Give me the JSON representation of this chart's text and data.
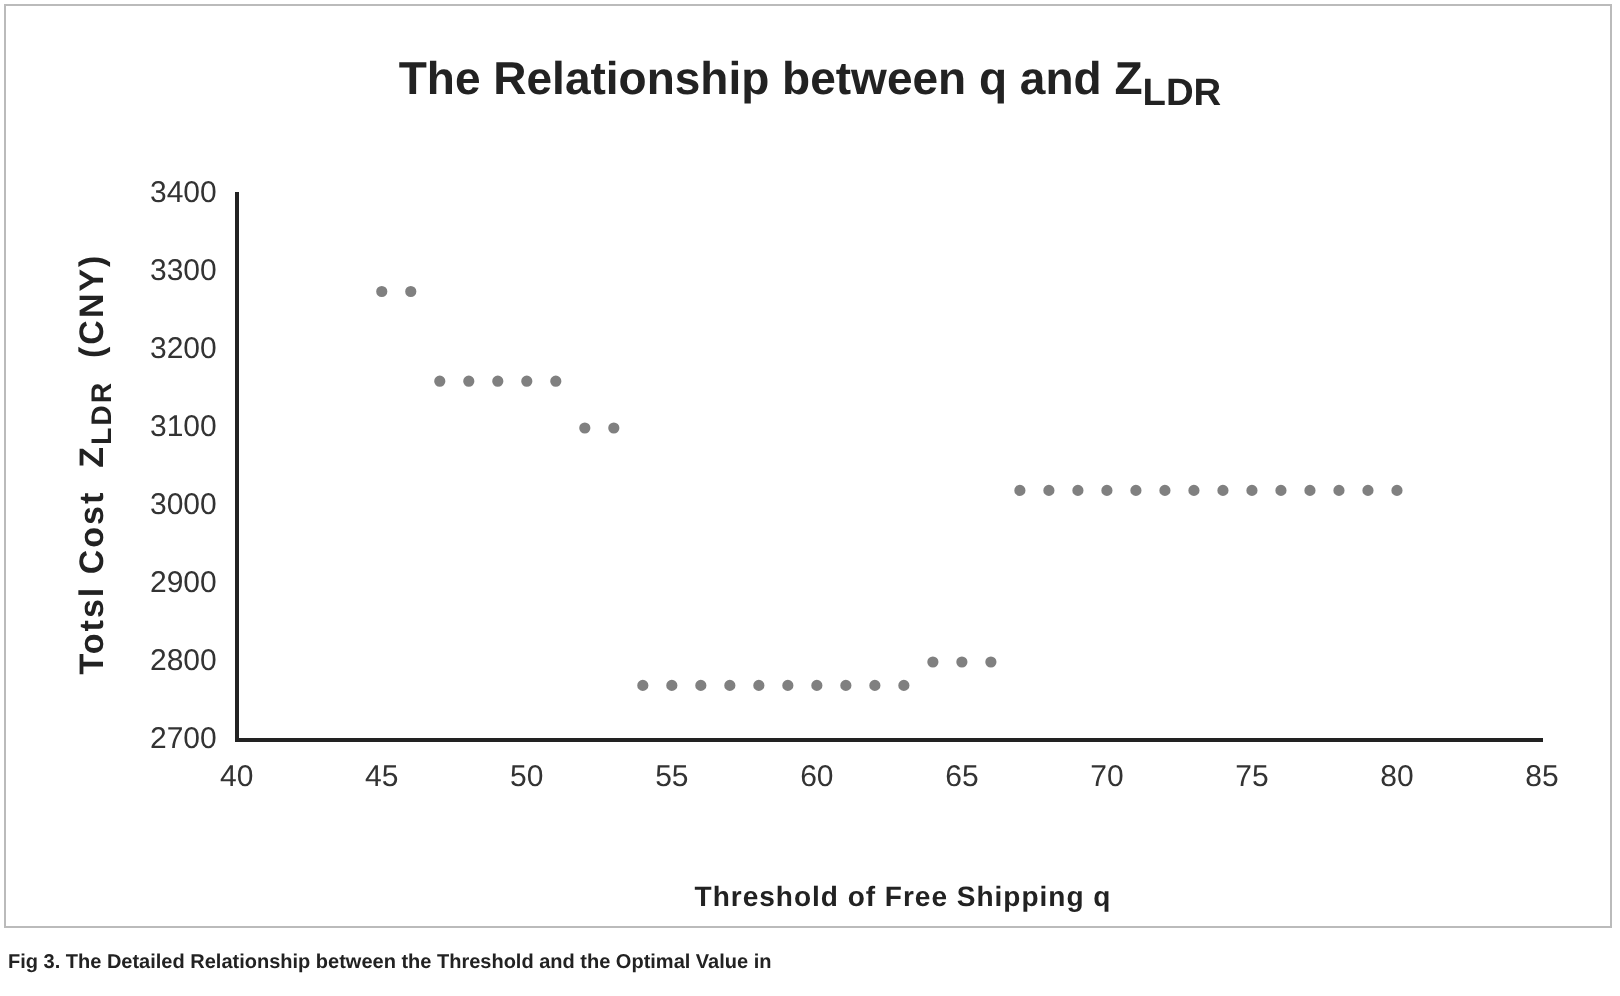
{
  "chart_data": {
    "type": "scatter",
    "title": "The Relationship between q and Z$_{LDR}$",
    "xlabel": "Threshold of Free Shipping q",
    "ylabel": "Totsl Cost  Z$_{LDR}$  (CNY)",
    "annotations": [
      "Fig 3. The Detailed Relationship between the Threshold and the Optimal Value in"
    ],
    "x": [
      45,
      46,
      47,
      48,
      49,
      50,
      51,
      52,
      53,
      54,
      55,
      56,
      57,
      58,
      59,
      60,
      61,
      62,
      63,
      64,
      65,
      66,
      67,
      68,
      69,
      70,
      71,
      72,
      73,
      74,
      75,
      76,
      77,
      78,
      79,
      80
    ],
    "series": [
      {
        "color": "#808080",
        "values": [
          3275,
          3275,
          3160,
          3160,
          3160,
          3160,
          3160,
          3100,
          3100,
          2770,
          2770,
          2770,
          2770,
          2770,
          2770,
          2770,
          2770,
          2770,
          2770,
          2800,
          2800,
          2800,
          3020,
          3020,
          3020,
          3020,
          3020,
          3020,
          3020,
          3020,
          3020,
          3020,
          3020,
          3020,
          3020,
          3020
        ]
      }
    ],
    "xlim": [
      40,
      85
    ],
    "xticks": [
      40,
      45,
      50,
      55,
      60,
      65,
      70,
      75,
      80,
      85
    ],
    "ylim": [
      2700,
      3400
    ],
    "yticks": [
      2700,
      2800,
      2900,
      3000,
      3100,
      3200,
      3300,
      3400
    ],
    "grid": false,
    "legend": false,
    "marker": "circle"
  }
}
